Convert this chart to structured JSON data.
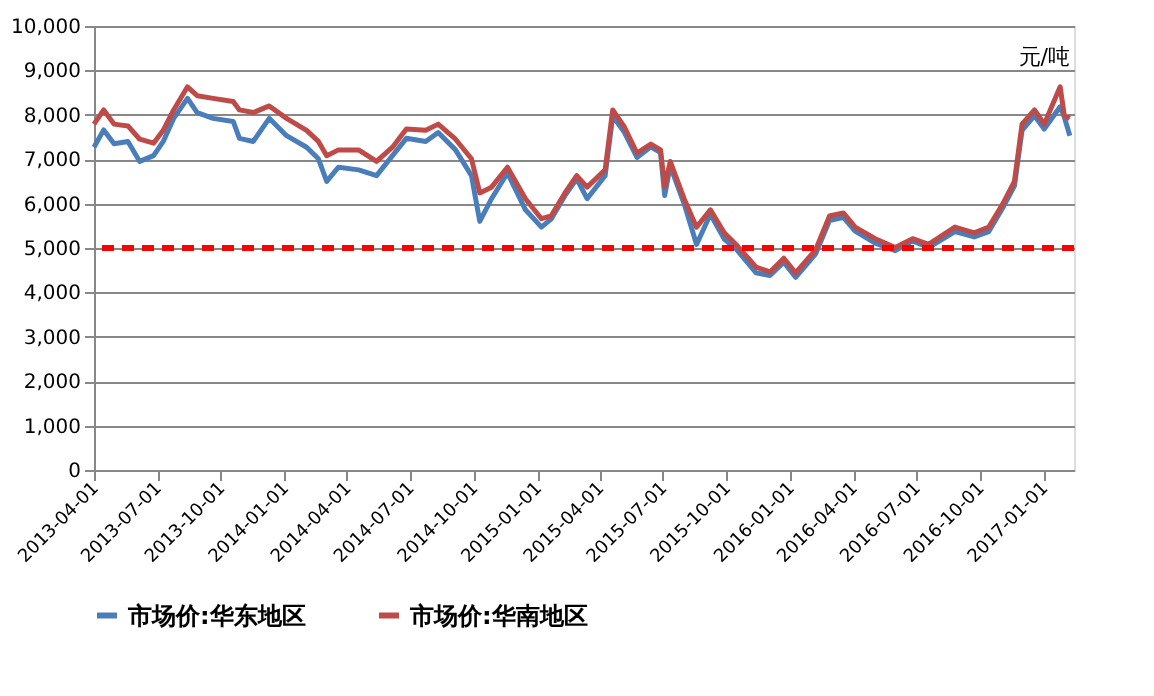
{
  "chart_data": {
    "type": "line",
    "annotations": [
      "元/吨"
    ],
    "x": [
      "2013-04-01",
      "2013-04-15",
      "2013-04-30",
      "2013-05-20",
      "2013-06-06",
      "2013-06-26",
      "2013-07-10",
      "2013-07-25",
      "2013-08-14",
      "2013-08-28",
      "2013-09-20",
      "2013-10-19",
      "2013-10-28",
      "2013-11-17",
      "2013-12-10",
      "2014-01-04",
      "2014-02-02",
      "2014-02-19",
      "2014-03-03",
      "2014-03-20",
      "2014-04-18",
      "2014-05-14",
      "2014-06-06",
      "2014-06-26",
      "2014-07-24",
      "2014-08-11",
      "2014-09-05",
      "2014-09-28",
      "2014-10-10",
      "2014-10-27",
      "2014-11-19",
      "2014-12-15",
      "2015-01-07",
      "2015-01-21",
      "2015-02-10",
      "2015-02-27",
      "2015-03-14",
      "2015-04-09",
      "2015-04-20",
      "2015-05-07",
      "2015-05-25",
      "2015-06-14",
      "2015-06-28",
      "2015-07-04",
      "2015-07-12",
      "2015-08-01",
      "2015-08-19",
      "2015-09-08",
      "2015-09-28",
      "2015-10-15",
      "2015-11-13",
      "2015-12-03",
      "2015-12-23",
      "2016-01-09",
      "2016-02-07",
      "2016-02-27",
      "2016-03-18",
      "2016-04-04",
      "2016-05-03",
      "2016-06-01",
      "2016-06-26",
      "2016-07-19",
      "2016-08-26",
      "2016-09-23",
      "2016-10-14",
      "2016-11-03",
      "2016-11-20",
      "2016-12-01",
      "2016-12-19",
      "2017-01-02",
      "2017-01-25",
      "2017-01-31",
      "2017-02-08"
    ],
    "series": [
      {
        "name": "市场价:华东地区",
        "color": "#4a7ebb",
        "values": [
          7270,
          7660,
          7350,
          7400,
          6950,
          7080,
          7400,
          7920,
          8370,
          8050,
          7920,
          7850,
          7470,
          7400,
          7920,
          7530,
          7270,
          7010,
          6500,
          6820,
          6760,
          6630,
          7080,
          7470,
          7400,
          7600,
          7210,
          6630,
          5600,
          6110,
          6690,
          5860,
          5470,
          5650,
          6180,
          6560,
          6110,
          6630,
          7970,
          7600,
          7040,
          7280,
          7150,
          6180,
          6850,
          6000,
          5080,
          5760,
          5200,
          4980,
          4440,
          4380,
          4680,
          4340,
          4870,
          5620,
          5690,
          5380,
          5110,
          4940,
          5160,
          5010,
          5370,
          5250,
          5370,
          5900,
          6400,
          7650,
          7980,
          7680,
          8180,
          7950,
          7530
        ]
      },
      {
        "name": "市场价:华南地区",
        "color": "#be4b48",
        "values": [
          7790,
          8110,
          7790,
          7750,
          7450,
          7360,
          7650,
          8110,
          8630,
          8430,
          8370,
          8300,
          8110,
          8050,
          8200,
          7920,
          7650,
          7400,
          7080,
          7210,
          7210,
          6950,
          7270,
          7680,
          7650,
          7790,
          7450,
          7010,
          6240,
          6370,
          6820,
          6110,
          5660,
          5720,
          6240,
          6630,
          6370,
          6760,
          8110,
          7720,
          7140,
          7340,
          7210,
          6380,
          6950,
          6110,
          5470,
          5860,
          5340,
          5080,
          4570,
          4460,
          4770,
          4440,
          4960,
          5720,
          5790,
          5470,
          5210,
          5010,
          5210,
          5080,
          5470,
          5340,
          5470,
          5990,
          6500,
          7790,
          8110,
          7790,
          8630,
          7980,
          7920
        ]
      }
    ],
    "xlim": [
      "2013-04-01",
      "2017-02-14"
    ],
    "xticks": [
      "2013-04-01",
      "2013-07-01",
      "2013-10-01",
      "2014-01-01",
      "2014-04-01",
      "2014-07-01",
      "2014-10-01",
      "2015-01-01",
      "2015-04-01",
      "2015-07-01",
      "2015-10-01",
      "2016-01-01",
      "2016-04-01",
      "2016-07-01",
      "2016-10-01",
      "2017-01-01"
    ],
    "ylim": [
      0,
      10000
    ],
    "yticks": [
      {
        "value": 0,
        "label": "0"
      },
      {
        "value": 1000,
        "label": "1,000"
      },
      {
        "value": 2000,
        "label": "2,000"
      },
      {
        "value": 3000,
        "label": "3,000"
      },
      {
        "value": 4000,
        "label": "4,000"
      },
      {
        "value": 5000,
        "label": "5,000"
      },
      {
        "value": 6000,
        "label": "6,000"
      },
      {
        "value": 7000,
        "label": "7,000"
      },
      {
        "value": 8000,
        "label": "8,000"
      },
      {
        "value": 9000,
        "label": "9,000"
      },
      {
        "value": 10000,
        "label": "10,000"
      }
    ],
    "ref_lines": [
      {
        "axis": "y",
        "value": 5000,
        "color": "#ff0000",
        "line_style": "dashed"
      }
    ],
    "grid": "y",
    "legend": "bottom",
    "marker": "none",
    "line_style": "solid"
  }
}
